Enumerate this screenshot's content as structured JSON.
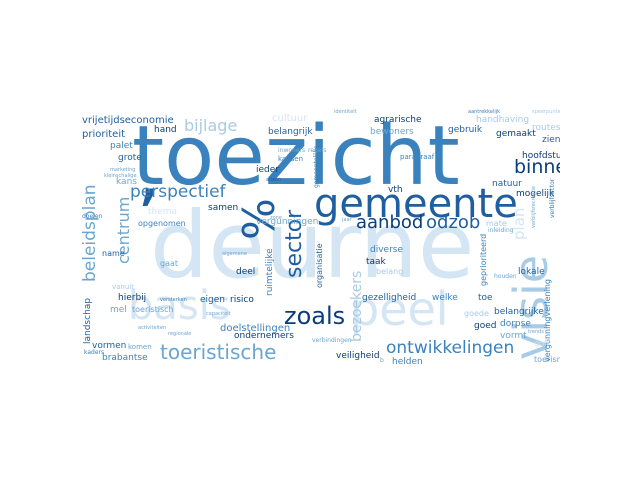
{
  "palette": {
    "darkest": "#0b3d7a",
    "dark": "#1f5f9f",
    "mid": "#3a82bd",
    "medium": "#6aa6cf",
    "light": "#a8cbe6",
    "faint": "#d4e5f3"
  },
  "words": [
    {
      "text": "deurne",
      "color": "#d4e5f3",
      "vertical": false
    },
    {
      "text": "toezicht",
      "color": "#3a82bd",
      "vertical": false
    },
    {
      "text": "’",
      "color": "#1f5f9f",
      "vertical": false
    },
    {
      "text": "visie",
      "color": "#a8cbe6",
      "vertical": true
    },
    {
      "text": "basis",
      "color": "#d4e5f3",
      "vertical": false
    },
    {
      "text": "peel",
      "color": "#d4e5f3",
      "vertical": false
    },
    {
      "text": "gemeente",
      "color": "#1f5f9f",
      "vertical": false
    },
    {
      "text": "%",
      "color": "#1f5f9f",
      "vertical": true
    },
    {
      "text": "zoals",
      "color": "#0b3d7a",
      "vertical": false
    },
    {
      "text": "toeristische",
      "color": "#6aa6cf",
      "vertical": false
    },
    {
      "text": "ontwikkelingen",
      "color": "#3a82bd",
      "vertical": false
    },
    {
      "text": "aanbod",
      "color": "#0b3d7a",
      "vertical": false
    },
    {
      "text": "odzob",
      "color": "#1f5f9f",
      "vertical": false
    },
    {
      "text": "sector",
      "color": "#1f5f9f",
      "vertical": true
    },
    {
      "text": "binnen",
      "color": "#0b3d7a",
      "vertical": false
    },
    {
      "text": "perspectief",
      "color": "#3a82bd",
      "vertical": false
    },
    {
      "text": "beleidsplan",
      "color": "#6aa6cf",
      "vertical": true
    },
    {
      "text": "centrum",
      "color": "#6aa6cf",
      "vertical": true
    },
    {
      "text": "bijlage",
      "color": "#a8cbe6",
      "vertical": false
    },
    {
      "text": "bezoekers",
      "color": "#a8cbe6",
      "vertical": true
    },
    {
      "text": "plan",
      "color": "#d4e5f3",
      "vertical": true
    },
    {
      "text": "cultuur",
      "color": "#d4e5f3",
      "vertical": false
    },
    {
      "text": "vrijetijdseconomie",
      "color": "#1f5f9f",
      "vertical": false
    },
    {
      "text": "prioriteit",
      "color": "#1f5f9f",
      "vertical": false
    },
    {
      "text": "hand",
      "color": "#0b3d7a",
      "vertical": false
    },
    {
      "text": "grote",
      "color": "#1f5f9f",
      "vertical": false
    },
    {
      "text": "palet",
      "color": "#3a82bd",
      "vertical": false
    },
    {
      "text": "kans",
      "color": "#6aa6cf",
      "vertical": false
    },
    {
      "text": "belangrijk",
      "color": "#1f5f9f",
      "vertical": false
    },
    {
      "text": "ieder",
      "color": "#0b3d7a",
      "vertical": false
    },
    {
      "text": "kansen",
      "color": "#3a82bd",
      "vertical": false
    },
    {
      "text": "inwoners",
      "color": "#6aa6cf",
      "vertical": false
    },
    {
      "text": "samen",
      "color": "#0b3d7a",
      "vertical": false
    },
    {
      "text": "vergunningen",
      "color": "#6aa6cf",
      "vertical": false
    },
    {
      "text": "opgenomen",
      "color": "#3a82bd",
      "vertical": false
    },
    {
      "text": "thema",
      "color": "#d4e5f3",
      "vertical": false
    },
    {
      "text": "doelen",
      "color": "#3a82bd",
      "vertical": false
    },
    {
      "text": "name",
      "color": "#1f5f9f",
      "vertical": false
    },
    {
      "text": "gaat",
      "color": "#6aa6cf",
      "vertical": false
    },
    {
      "text": "vanuit",
      "color": "#a8cbe6",
      "vertical": false
    },
    {
      "text": "hierbij",
      "color": "#0b3d7a",
      "vertical": false
    },
    {
      "text": "landschap",
      "color": "#1f5f9f",
      "vertical": true
    },
    {
      "text": "mel",
      "color": "#6aa6cf",
      "vertical": false
    },
    {
      "text": "toeristisch",
      "color": "#6aa6cf",
      "vertical": false
    },
    {
      "text": "vormen",
      "color": "#1f5f9f",
      "vertical": false
    },
    {
      "text": "komen",
      "color": "#6aa6cf",
      "vertical": false
    },
    {
      "text": "brabantse",
      "color": "#3a82bd",
      "vertical": false
    },
    {
      "text": "kaders",
      "color": "#3a82bd",
      "vertical": false
    },
    {
      "text": "deel",
      "color": "#0b3d7a",
      "vertical": false
    },
    {
      "text": "eigen",
      "color": "#1f5f9f",
      "vertical": false
    },
    {
      "text": "risico",
      "color": "#0b3d7a",
      "vertical": false
    },
    {
      "text": "ruimtelijke",
      "color": "#3a82bd",
      "vertical": true
    },
    {
      "text": "doelstellingen",
      "color": "#3a82bd",
      "vertical": false
    },
    {
      "text": "ondernemers",
      "color": "#0b3d7a",
      "vertical": false
    },
    {
      "text": "veiligheid",
      "color": "#0b3d7a",
      "vertical": false
    },
    {
      "text": "helden",
      "color": "#3a82bd",
      "vertical": false
    },
    {
      "text": "organisatie",
      "color": "#1f5f9f",
      "vertical": true
    },
    {
      "text": "agrarische",
      "color": "#0b3d7a",
      "vertical": false
    },
    {
      "text": "bewoners",
      "color": "#6aa6cf",
      "vertical": false
    },
    {
      "text": "gebruik",
      "color": "#1f5f9f",
      "vertical": false
    },
    {
      "text": "gemaakt",
      "color": "#0b3d7a",
      "vertical": false
    },
    {
      "text": "handhaving",
      "color": "#a8cbe6",
      "vertical": false
    },
    {
      "text": "routes",
      "color": "#a8cbe6",
      "vertical": false
    },
    {
      "text": "zien",
      "color": "#1f5f9f",
      "vertical": false
    },
    {
      "text": "hoofdstuk",
      "color": "#0b3d7a",
      "vertical": false
    },
    {
      "text": "natuur",
      "color": "#1f5f9f",
      "vertical": false
    },
    {
      "text": "vth",
      "color": "#0b3d7a",
      "vertical": false
    },
    {
      "text": "mogelijk",
      "color": "#0b3d7a",
      "vertical": false
    },
    {
      "text": "diverse",
      "color": "#3a82bd",
      "vertical": false
    },
    {
      "text": "taak",
      "color": "#0b3d7a",
      "vertical": false
    },
    {
      "text": "gezelligheid",
      "color": "#1f5f9f",
      "vertical": false
    },
    {
      "text": "welke",
      "color": "#3a82bd",
      "vertical": false
    },
    {
      "text": "toe",
      "color": "#1f5f9f",
      "vertical": false
    },
    {
      "text": "lokale",
      "color": "#1f5f9f",
      "vertical": false
    },
    {
      "text": "belangrijke",
      "color": "#1f5f9f",
      "vertical": false
    },
    {
      "text": "dorpse",
      "color": "#3a82bd",
      "vertical": false
    },
    {
      "text": "goed",
      "color": "#0b3d7a",
      "vertical": false
    },
    {
      "text": "vormt",
      "color": "#6aa6cf",
      "vertical": false
    },
    {
      "text": "toerisme",
      "color": "#6aa6cf",
      "vertical": false
    },
    {
      "text": "geprioriteerd",
      "color": "#3a82bd",
      "vertical": true
    },
    {
      "text": "vergunningverlening",
      "color": "#3a82bd",
      "vertical": true
    },
    {
      "text": "paragraaf",
      "color": "#3a82bd",
      "vertical": false
    },
    {
      "text": "gemeentelijke",
      "color": "#3a82bd",
      "vertical": true
    },
    {
      "text": "houden",
      "color": "#6aa6cf",
      "vertical": false
    },
    {
      "text": "inleiding",
      "color": "#6aa6cf",
      "vertical": false
    },
    {
      "text": "aantrekkelijk",
      "color": "#3a82bd",
      "vertical": false
    },
    {
      "text": "identiteit",
      "color": "#6aa6cf",
      "vertical": false
    },
    {
      "text": "belang",
      "color": "#a8cbe6",
      "vertical": false
    },
    {
      "text": "goede",
      "color": "#a8cbe6",
      "vertical": false
    },
    {
      "text": "regels",
      "color": "#6aa6cf",
      "vertical": false
    },
    {
      "text": "alleen",
      "color": "#1f5f9f",
      "vertical": false
    },
    {
      "text": "zone",
      "color": "#6aa6cf",
      "vertical": false
    },
    {
      "text": "jaar",
      "color": "#6aa6cf",
      "vertical": false
    },
    {
      "text": "verbindingen",
      "color": "#6aa6cf",
      "vertical": false
    },
    {
      "text": "mate",
      "color": "#a8cbe6",
      "vertical": false
    },
    {
      "text": "verblijfsrecreatie",
      "color": "#6aa6cf",
      "vertical": true
    },
    {
      "text": "goff",
      "color": "#d4e5f3",
      "vertical": false
    },
    {
      "text": "marketing",
      "color": "#6aa6cf",
      "vertical": false
    },
    {
      "text": "kleinschalige",
      "color": "#6aa6cf",
      "vertical": false
    },
    {
      "text": "regionale",
      "color": "#6aa6cf",
      "vertical": false
    },
    {
      "text": "activiteiten",
      "color": "#6aa6cf",
      "vertical": false
    },
    {
      "text": "versterken",
      "color": "#3a82bd",
      "vertical": false
    },
    {
      "text": "capaciteit",
      "color": "#6aa6cf",
      "vertical": false
    },
    {
      "text": "algemene",
      "color": "#6aa6cf",
      "vertical": false
    },
    {
      "text": "verblijfsector",
      "color": "#3a82bd",
      "vertical": true
    },
    {
      "text": "speerpunten",
      "color": "#a8cbe6",
      "vertical": false
    },
    {
      "text": "trends",
      "color": "#6aa6cf",
      "vertical": false
    },
    {
      "text": "b",
      "color": "#6aa6cf",
      "vertical": false
    }
  ]
}
